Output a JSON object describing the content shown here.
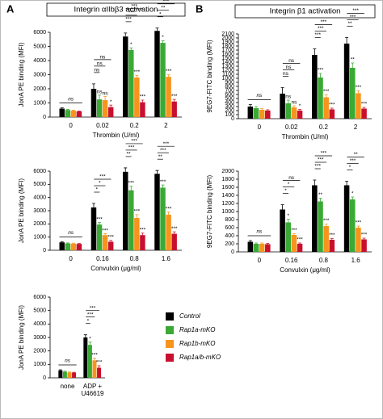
{
  "panels": [
    "A",
    "B"
  ],
  "series_styles": [
    {
      "name": "Control",
      "color": "#000000"
    },
    {
      "name": "Rap1a-mKO",
      "color": "#3aaa35"
    },
    {
      "name": "Rap1b-mKO",
      "color": "#f7941d"
    },
    {
      "name": "Rap1a/b-mKO",
      "color": "#c8102e"
    }
  ],
  "chart_data": [
    {
      "type": "bar",
      "title": "Integrin αIIbβ3 activation",
      "y_label": "JonA PE binding (MFI)",
      "x_label": "Thrombin (U/ml)",
      "categories": [
        "0",
        "0.02",
        "0.2",
        "2"
      ],
      "ylim": [
        0,
        6000
      ],
      "yticks": [
        0,
        1000,
        2000,
        3000,
        4000,
        5000,
        6000
      ],
      "series": [
        {
          "values": [
            600,
            2000,
            5700,
            6100
          ],
          "errors": [
            50,
            350,
            250,
            200
          ],
          "significance": [
            null,
            null,
            null,
            null
          ]
        },
        {
          "values": [
            500,
            1250,
            4750,
            5250
          ],
          "errors": [
            40,
            300,
            150,
            150
          ],
          "significance": [
            null,
            "ns",
            "*",
            "*"
          ]
        },
        {
          "values": [
            450,
            1200,
            2800,
            2850
          ],
          "errors": [
            40,
            250,
            150,
            150
          ],
          "significance": [
            null,
            "ns",
            "***",
            "***"
          ]
        },
        {
          "values": [
            400,
            700,
            1050,
            1100
          ],
          "errors": [
            30,
            150,
            150,
            150
          ],
          "significance": [
            null,
            "*",
            "***",
            "***"
          ]
        }
      ],
      "baseline": "ns",
      "brackets": [
        {
          "category": 1,
          "labels": [
            "ns",
            "ns",
            "ns"
          ]
        },
        {
          "category": 2,
          "labels": [
            "***",
            "***",
            "***"
          ]
        },
        {
          "category": 3,
          "labels": [
            "*",
            "**",
            "***"
          ]
        }
      ]
    },
    {
      "type": "bar",
      "y_label": "JonA PE binding (MFI)",
      "x_label": "Convulxin (μg/ml)",
      "categories": [
        "0",
        "0.16",
        "0.8",
        "1.6"
      ],
      "ylim": [
        0,
        6000
      ],
      "yticks": [
        0,
        1000,
        2000,
        3000,
        4000,
        5000,
        6000
      ],
      "series": [
        {
          "values": [
            600,
            3250,
            5950,
            5800
          ],
          "errors": [
            50,
            300,
            300,
            250
          ],
          "significance": [
            null,
            null,
            null,
            null
          ]
        },
        {
          "values": [
            520,
            1950,
            4550,
            4750
          ],
          "errors": [
            40,
            150,
            300,
            200
          ],
          "significance": [
            null,
            "***",
            "***",
            "***"
          ]
        },
        {
          "values": [
            500,
            1150,
            2450,
            2700
          ],
          "errors": [
            40,
            100,
            250,
            200
          ],
          "significance": [
            null,
            "***",
            "***",
            "***"
          ]
        },
        {
          "values": [
            480,
            650,
            1150,
            1250
          ],
          "errors": [
            30,
            100,
            150,
            150
          ],
          "significance": [
            null,
            "***",
            "***",
            "***"
          ]
        }
      ],
      "baseline": "ns",
      "brackets": [
        {
          "category": 1,
          "labels": [
            "*",
            "*",
            "***"
          ]
        },
        {
          "category": 2,
          "labels": [
            "**",
            "***",
            "***"
          ]
        },
        {
          "category": 3,
          "labels": [
            "**",
            "***",
            "***"
          ]
        }
      ]
    },
    {
      "type": "bar",
      "y_label": "JonA PE binding (MFI)",
      "categories": [
        "none",
        "ADP + U46619"
      ],
      "ylim": [
        0,
        6000
      ],
      "yticks": [
        0,
        1000,
        2000,
        3000,
        4000,
        5000,
        6000
      ],
      "series": [
        {
          "values": [
            550,
            3000
          ],
          "errors": [
            50,
            200
          ],
          "significance": [
            null,
            null
          ]
        },
        {
          "values": [
            450,
            2450
          ],
          "errors": [
            40,
            200
          ],
          "significance": [
            null,
            "*"
          ]
        },
        {
          "values": [
            400,
            1300
          ],
          "errors": [
            30,
            150
          ],
          "significance": [
            null,
            "***"
          ]
        },
        {
          "values": [
            380,
            750
          ],
          "errors": [
            30,
            150
          ],
          "significance": [
            null,
            "***"
          ]
        }
      ],
      "baseline": "ns",
      "brackets": [
        {
          "category": 1,
          "labels": [
            "*",
            "***",
            "***"
          ]
        }
      ]
    },
    {
      "type": "bar",
      "title": "Integrin β1 activation",
      "y_label": "9EG7-FITC binding (MFI)",
      "x_label": "Thrombin (U/ml)",
      "categories": [
        "0",
        "0.02",
        "0.2",
        "2"
      ],
      "ylim": [
        0,
        2100
      ],
      "yticks": [
        0,
        100,
        200,
        300,
        400,
        500,
        600,
        700,
        800,
        900,
        1000,
        1100,
        1200,
        1300,
        1400,
        1500,
        1600,
        1700,
        1800,
        1900,
        2000,
        2100
      ],
      "series": [
        {
          "values": [
            300,
            620,
            1580,
            1860
          ],
          "errors": [
            50,
            150,
            150,
            150
          ],
          "significance": [
            null,
            null,
            null,
            null
          ]
        },
        {
          "values": [
            260,
            380,
            1020,
            1260
          ],
          "errors": [
            40,
            80,
            100,
            120
          ],
          "significance": [
            null,
            "ns",
            "***",
            "**"
          ]
        },
        {
          "values": [
            220,
            280,
            530,
            630
          ],
          "errors": [
            30,
            40,
            60,
            60
          ],
          "significance": [
            null,
            "ns",
            "***",
            "***"
          ]
        },
        {
          "values": [
            200,
            200,
            230,
            250
          ],
          "errors": [
            20,
            30,
            30,
            30
          ],
          "significance": [
            null,
            "*",
            "***",
            "***"
          ]
        }
      ],
      "baseline": "ns",
      "brackets": [
        {
          "category": 1,
          "labels": [
            "ns",
            "ns",
            "ns"
          ]
        },
        {
          "category": 2,
          "labels": [
            "***",
            "***",
            "***"
          ]
        },
        {
          "category": 3,
          "labels": [
            "**",
            "***",
            "***"
          ]
        }
      ]
    },
    {
      "type": "bar",
      "y_label": "9EG7-FITC binding (MFI)",
      "x_label": "Convulxin (μg/ml)",
      "categories": [
        "0",
        "0.16",
        "0.8",
        "1.6"
      ],
      "ylim": [
        0,
        2000
      ],
      "yticks": [
        0,
        200,
        400,
        600,
        800,
        1000,
        1200,
        1400,
        1600,
        1800,
        2000
      ],
      "series": [
        {
          "values": [
            250,
            1050,
            1650,
            1650
          ],
          "errors": [
            30,
            120,
            130,
            100
          ],
          "significance": [
            null,
            null,
            null,
            null
          ]
        },
        {
          "values": [
            200,
            730,
            1250,
            1300
          ],
          "errors": [
            20,
            80,
            80,
            60
          ],
          "significance": [
            null,
            "*",
            "**",
            "*"
          ]
        },
        {
          "values": [
            200,
            420,
            640,
            600
          ],
          "errors": [
            20,
            30,
            50,
            40
          ],
          "significance": [
            null,
            "***",
            "***",
            "***"
          ]
        },
        {
          "values": [
            190,
            200,
            300,
            310
          ],
          "errors": [
            20,
            20,
            30,
            30
          ],
          "significance": [
            null,
            "***",
            "***",
            "***"
          ]
        }
      ],
      "baseline": "ns",
      "brackets": [
        {
          "category": 1,
          "labels": [
            "*",
            "*",
            "ns"
          ]
        },
        {
          "category": 2,
          "labels": [
            "***",
            "***",
            "***"
          ]
        },
        {
          "category": 3,
          "labels": [
            "*",
            "***",
            "**"
          ]
        }
      ]
    }
  ]
}
